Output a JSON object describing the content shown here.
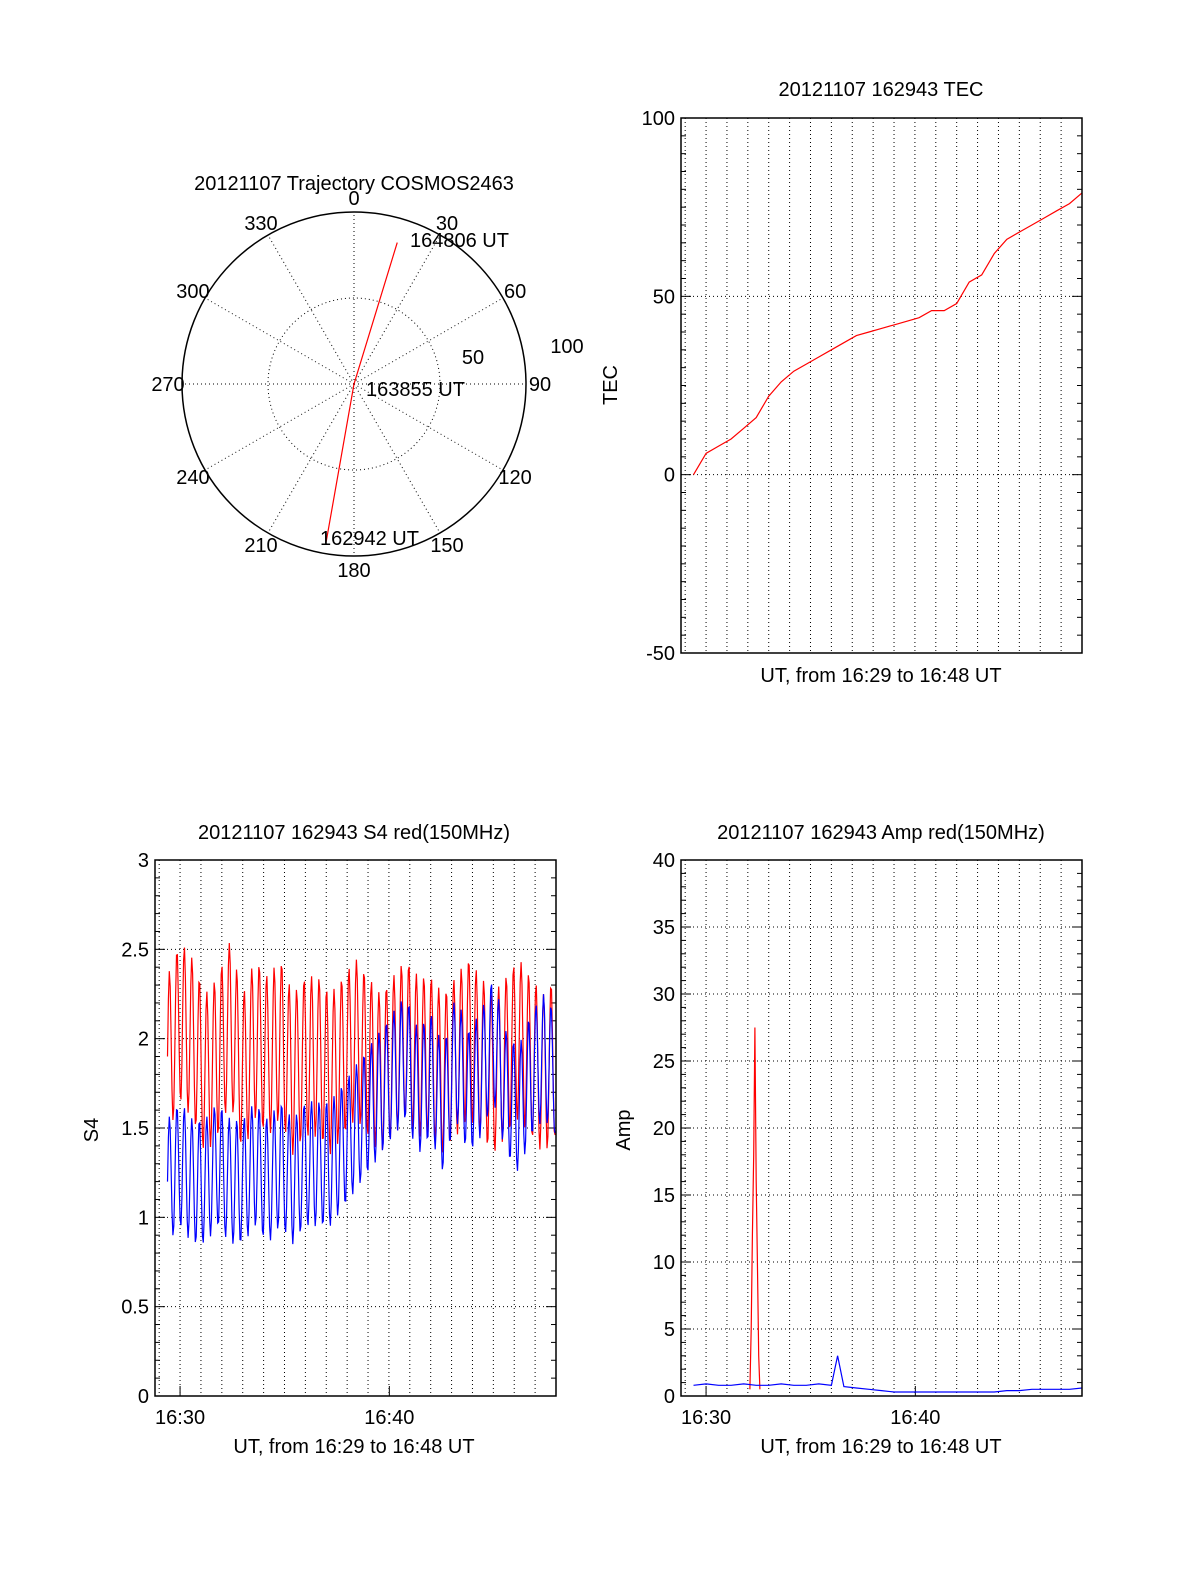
{
  "colors": {
    "red": "#ff0000",
    "blue": "#0000ff",
    "axis": "#000000",
    "grid": "#000000"
  },
  "chart_data": [
    {
      "type": "polar",
      "title": "20121107 Trajectory COSMOS2463",
      "angle_labels": [
        "0",
        "30",
        "60",
        "90",
        "120",
        "150",
        "180",
        "210",
        "240",
        "270",
        "300",
        "330"
      ],
      "radial_labels": [
        "50",
        "100"
      ],
      "rlim": [
        0,
        100
      ],
      "grid": true,
      "series": [
        {
          "color": "red",
          "points": [
            {
              "az": 190,
              "r": 93
            },
            {
              "az": 180,
              "r": 0
            },
            {
              "az": 17,
              "r": 86
            }
          ]
        }
      ],
      "annotations": [
        "164806 UT",
        "163855 UT",
        "162942 UT"
      ]
    },
    {
      "type": "line",
      "title": "20121107 162943 TEC",
      "xlabel": "UT, from 16:29 to 16:48 UT",
      "ylabel": "TEC",
      "xlim": [
        16.48,
        16.8
      ],
      "ylim": [
        -50,
        100
      ],
      "yticks": [
        "-50",
        "0",
        "50",
        "100"
      ],
      "grid": true,
      "series": [
        {
          "color": "red",
          "x": [
            16.49,
            16.5,
            16.51,
            16.52,
            16.53,
            16.54,
            16.55,
            16.56,
            16.57,
            16.58,
            16.59,
            16.6,
            16.61,
            16.62,
            16.63,
            16.64,
            16.65,
            16.66,
            16.67,
            16.68,
            16.69,
            16.7,
            16.71,
            16.72,
            16.73,
            16.74,
            16.75,
            16.76,
            16.77,
            16.78,
            16.79,
            16.8
          ],
          "y": [
            0,
            6,
            8,
            10,
            13,
            16,
            22,
            26,
            29,
            31,
            33,
            35,
            37,
            39,
            40,
            41,
            42,
            43,
            44,
            46,
            46,
            48,
            54,
            56,
            62,
            66,
            68,
            70,
            72,
            74,
            76,
            79
          ]
        }
      ]
    },
    {
      "type": "line",
      "title": "20121107 162943 S4 red(150MHz)",
      "xlabel": "UT, from 16:29 to 16:48 UT",
      "ylabel": "S4",
      "xlim": [
        16.48,
        16.8
      ],
      "ylim": [
        0,
        3
      ],
      "yticks": [
        "0",
        "0.5",
        "1",
        "1.5",
        "2",
        "2.5",
        "3"
      ],
      "xticks": [
        {
          "x": 16.5,
          "label": "16:30"
        },
        {
          "x": 16.667,
          "label": "16:40"
        }
      ],
      "grid": true,
      "series": [
        {
          "color": "red",
          "x": [
            16.49,
            16.5,
            16.51,
            16.52,
            16.53,
            16.54,
            16.55,
            16.56,
            16.57,
            16.58,
            16.59,
            16.6,
            16.61,
            16.62,
            16.63,
            16.64,
            16.65,
            16.66,
            16.67,
            16.68,
            16.69,
            16.7,
            16.71,
            16.72,
            16.73,
            16.74,
            16.75,
            16.76,
            16.77,
            16.78,
            16.79,
            16.8
          ],
          "y": [
            1.9,
            2.1,
            2.0,
            1.8,
            1.9,
            2.1,
            1.8,
            2.0,
            1.9,
            2.0,
            1.8,
            1.9,
            1.9,
            1.8,
            1.9,
            2.0,
            1.9,
            1.8,
            1.9,
            2.0,
            1.9,
            1.9,
            1.8,
            1.9,
            2.0,
            1.9,
            1.8,
            1.9,
            2.0,
            1.9,
            1.8,
            1.9
          ]
        },
        {
          "color": "blue",
          "x": [
            16.49,
            16.5,
            16.51,
            16.52,
            16.53,
            16.54,
            16.55,
            16.56,
            16.57,
            16.58,
            16.59,
            16.6,
            16.61,
            16.62,
            16.63,
            16.64,
            16.65,
            16.66,
            16.67,
            16.68,
            16.69,
            16.7,
            16.71,
            16.72,
            16.73,
            16.74,
            16.75,
            16.76,
            16.77,
            16.78,
            16.79,
            16.8
          ],
          "y": [
            1.2,
            1.3,
            1.2,
            1.2,
            1.3,
            1.2,
            1.2,
            1.3,
            1.2,
            1.3,
            1.2,
            1.3,
            1.3,
            1.3,
            1.4,
            1.5,
            1.6,
            1.7,
            1.8,
            1.9,
            1.7,
            1.8,
            1.6,
            1.9,
            1.7,
            1.8,
            2.0,
            1.7,
            1.6,
            1.8,
            1.9,
            1.8
          ]
        }
      ]
    },
    {
      "type": "line",
      "title": "20121107 162943 Amp red(150MHz)",
      "xlabel": "UT, from 16:29 to 16:48 UT",
      "ylabel": "Amp",
      "xlim": [
        16.48,
        16.8
      ],
      "ylim": [
        0,
        40
      ],
      "yticks": [
        "0",
        "5",
        "10",
        "15",
        "20",
        "25",
        "30",
        "35",
        "40"
      ],
      "xticks": [
        {
          "x": 16.5,
          "label": "16:30"
        },
        {
          "x": 16.667,
          "label": "16:40"
        }
      ],
      "grid": true,
      "series": [
        {
          "color": "red",
          "x": [
            16.535,
            16.536,
            16.537,
            16.538,
            16.539,
            16.54,
            16.541,
            16.542,
            16.543
          ],
          "y": [
            0.5,
            5,
            12,
            18,
            27.5,
            16,
            10,
            3,
            0.5
          ]
        },
        {
          "color": "blue",
          "x": [
            16.49,
            16.5,
            16.51,
            16.52,
            16.53,
            16.54,
            16.55,
            16.56,
            16.57,
            16.58,
            16.59,
            16.6,
            16.605,
            16.61,
            16.62,
            16.63,
            16.64,
            16.65,
            16.66,
            16.67,
            16.68,
            16.69,
            16.7,
            16.71,
            16.72,
            16.73,
            16.74,
            16.75,
            16.76,
            16.77,
            16.78,
            16.79,
            16.8
          ],
          "y": [
            0.8,
            0.9,
            0.8,
            0.8,
            0.9,
            0.8,
            0.8,
            0.9,
            0.8,
            0.8,
            0.9,
            0.8,
            3.0,
            0.7,
            0.6,
            0.5,
            0.4,
            0.3,
            0.3,
            0.3,
            0.3,
            0.3,
            0.3,
            0.3,
            0.3,
            0.3,
            0.4,
            0.4,
            0.5,
            0.5,
            0.5,
            0.5,
            0.6
          ]
        }
      ]
    }
  ]
}
